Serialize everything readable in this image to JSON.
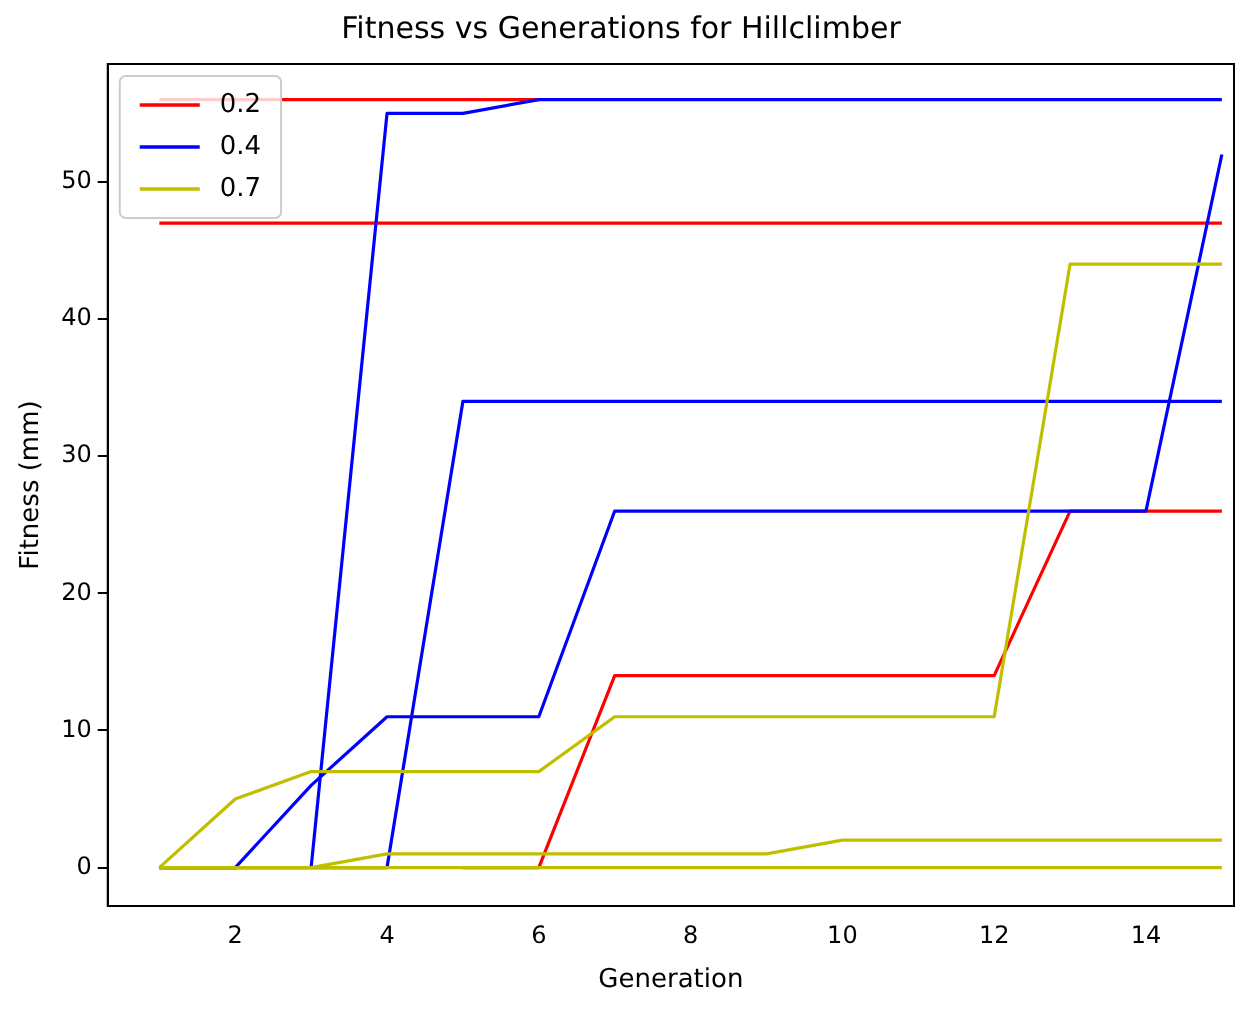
{
  "chart_data": {
    "type": "line",
    "title": "Fitness vs Generations for Hillclimber",
    "xlabel": "Generation",
    "ylabel": "Fitness (mm)",
    "x": [
      1,
      2,
      3,
      4,
      5,
      6,
      7,
      8,
      9,
      10,
      11,
      12,
      13,
      14,
      15
    ],
    "series": [
      {
        "name": "0.2",
        "color": "#ff0000",
        "values": [
          56,
          56,
          56,
          56,
          56,
          56,
          null,
          null,
          null,
          null,
          null,
          null,
          null,
          null,
          null
        ]
      },
      {
        "color": "#ff0000",
        "values": [
          47,
          47,
          47,
          47,
          47,
          47,
          47,
          47,
          47,
          47,
          47,
          47,
          47,
          47,
          47
        ]
      },
      {
        "color": "#ff0000",
        "values": [
          null,
          null,
          null,
          null,
          0,
          0,
          14,
          14,
          14,
          14,
          14,
          14,
          26,
          26,
          26
        ]
      },
      {
        "name": "0.4",
        "color": "#0000ff",
        "values": [
          null,
          null,
          0,
          55,
          55,
          56,
          56,
          56,
          56,
          56,
          56,
          56,
          56,
          56,
          56
        ]
      },
      {
        "color": "#0000ff",
        "values": [
          0,
          0,
          0,
          0,
          34,
          34,
          34,
          34,
          34,
          34,
          34,
          34,
          34,
          34,
          34
        ]
      },
      {
        "color": "#0000ff",
        "values": [
          0,
          0,
          6,
          11,
          11,
          11,
          26,
          26,
          26,
          26,
          26,
          26,
          26,
          26,
          52
        ]
      },
      {
        "name": "0.7",
        "color": "#bfbf00",
        "values": [
          0,
          5,
          7,
          7,
          7,
          7,
          11,
          11,
          11,
          11,
          11,
          11,
          44,
          44,
          44
        ]
      },
      {
        "color": "#bfbf00",
        "values": [
          0,
          0,
          0,
          1,
          1,
          1,
          1,
          1,
          1,
          2,
          2,
          2,
          2,
          2,
          2
        ]
      },
      {
        "color": "#bfbf00",
        "values": [
          0,
          0,
          0,
          0,
          0,
          0,
          0,
          0,
          0,
          0,
          0,
          0,
          0,
          0,
          0
        ]
      }
    ],
    "xlim": [
      0.32,
      15.16
    ],
    "xticks": [
      2,
      4,
      6,
      8,
      10,
      12,
      14
    ],
    "ylim": [
      -2.8,
      58.6
    ],
    "yticks": [
      0,
      10,
      20,
      30,
      40,
      50
    ],
    "grid": false,
    "legend": "top left",
    "marker": "none",
    "line_style": "solid"
  }
}
